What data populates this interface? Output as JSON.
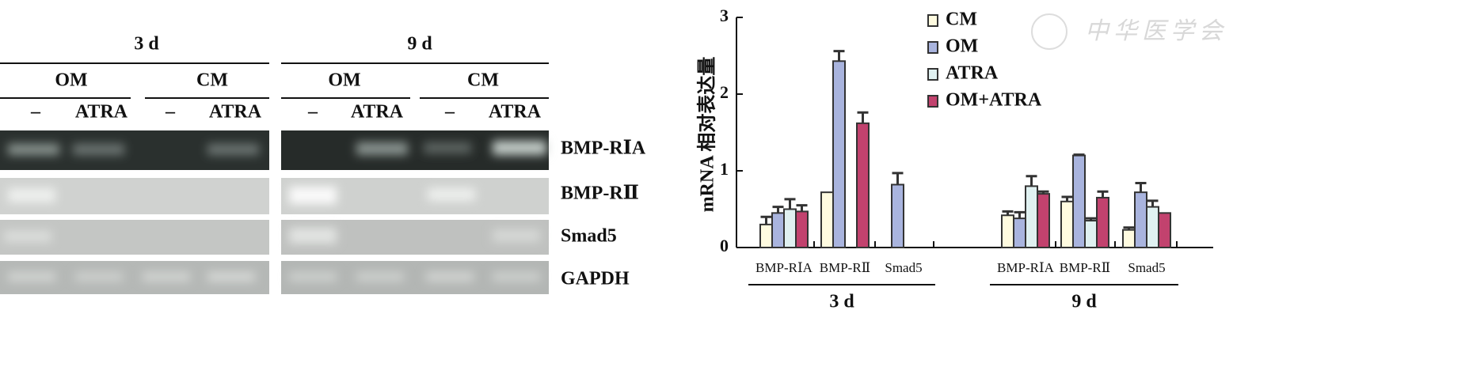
{
  "gel": {
    "timepoints": [
      "3 d",
      "9 d"
    ],
    "media": [
      "OM",
      "CM"
    ],
    "treatments": [
      "–",
      "ATRA"
    ],
    "genes": [
      "BMP-RⅠA",
      "BMP-RⅡ",
      "Smad5",
      "GAPDH"
    ]
  },
  "watermark": "中华医学会",
  "chart_data": {
    "type": "bar",
    "y_label": "mRNA 相对表达量",
    "groups": [
      "3 d",
      "9 d"
    ],
    "categories": [
      "BMP-RⅠA",
      "BMP-RⅡ",
      "Smad5",
      "BMP-RⅠA",
      "BMP-RⅡ",
      "Smad5"
    ],
    "series": [
      {
        "name": "CM",
        "color": "#fffbe0",
        "values": [
          0.3,
          0.72,
          0,
          0.42,
          0.6,
          0.23
        ],
        "errors": [
          0.1,
          0,
          0,
          0.05,
          0.06,
          0.03
        ]
      },
      {
        "name": "OM",
        "color": "#a9b4de",
        "values": [
          0.45,
          2.43,
          0.82,
          0.38,
          1.2,
          0.72
        ],
        "errors": [
          0.08,
          0.13,
          0.15,
          0.08,
          0.01,
          0.12
        ]
      },
      {
        "name": "ATRA",
        "color": "#e0f1f1",
        "values": [
          0.5,
          0,
          0,
          0.8,
          0.35,
          0.53
        ],
        "errors": [
          0.13,
          0,
          0,
          0.13,
          0.03,
          0.08
        ]
      },
      {
        "name": "OM+ATRA",
        "color": "#c2426e",
        "values": [
          0.47,
          1.62,
          0,
          0.7,
          0.65,
          0.45
        ],
        "errors": [
          0.08,
          0.14,
          0,
          0.03,
          0.08,
          0
        ]
      }
    ],
    "ylim": [
      0,
      3
    ],
    "yticks": [
      0,
      1,
      2,
      3
    ],
    "legend": "top-right"
  }
}
